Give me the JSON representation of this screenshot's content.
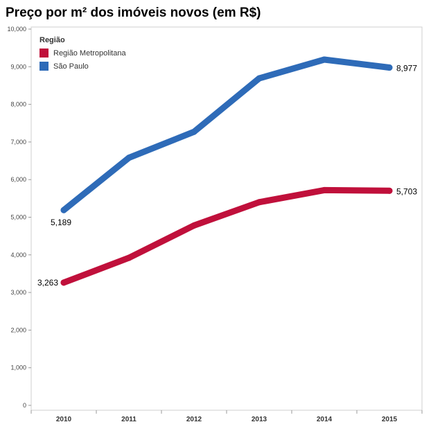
{
  "chart_data": {
    "type": "line",
    "title": "Preço por m² dos imóveis novos (em R$)",
    "xlabel": "",
    "ylabel": "",
    "categories": [
      "2010",
      "2011",
      "2012",
      "2013",
      "2014",
      "2015"
    ],
    "ylim": [
      0,
      10000
    ],
    "y_ticks": [
      0,
      1000,
      2000,
      3000,
      4000,
      5000,
      6000,
      7000,
      8000,
      9000,
      10000
    ],
    "y_tick_labels": [
      "0",
      "1,000",
      "2,000",
      "3,000",
      "4,000",
      "5,000",
      "6,000",
      "7,000",
      "8,000",
      "9,000",
      "10,000"
    ],
    "grid": false,
    "legend": {
      "title": "Região",
      "placement": "top-left"
    },
    "series": [
      {
        "name": "Região Metropolitana",
        "color": "#c0103b",
        "values": [
          3263,
          3920,
          4780,
          5400,
          5720,
          5703
        ],
        "data_labels": [
          {
            "index": 0,
            "text": "3,263"
          },
          {
            "index": 5,
            "text": "5,703"
          }
        ]
      },
      {
        "name": "São Paulo",
        "color": "#2e6bb8",
        "values": [
          5189,
          6580,
          7270,
          8690,
          9190,
          8977
        ],
        "data_labels": [
          {
            "index": 0,
            "text": "5,189"
          },
          {
            "index": 5,
            "text": "8,977"
          }
        ]
      }
    ]
  }
}
